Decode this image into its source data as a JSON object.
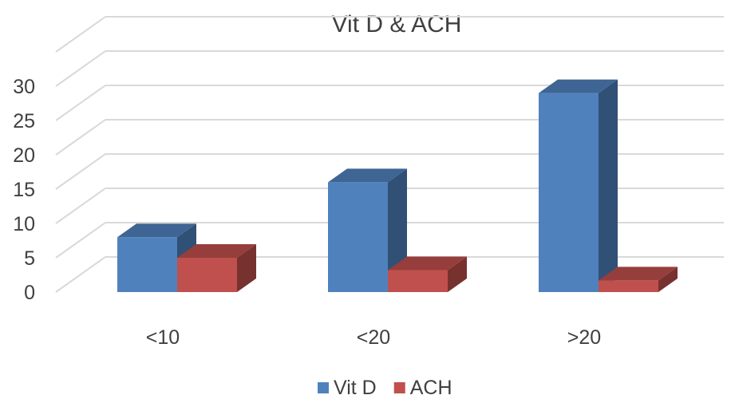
{
  "chart_data": {
    "type": "bar",
    "title": "Vit D & ACH",
    "categories": [
      "<10",
      "<20",
      ">20"
    ],
    "series": [
      {
        "name": "Vit D",
        "values": [
          8,
          16,
          29
        ],
        "color": "#4F81BD"
      },
      {
        "name": "ACH",
        "values": [
          5,
          3.2,
          1.7
        ],
        "color": "#C0504D"
      }
    ],
    "yticks": [
      "0",
      "5",
      "10",
      "15",
      "20",
      "25",
      "30"
    ],
    "ylim": [
      0,
      30
    ],
    "grid": true,
    "legend_position": "bottom",
    "style": "3d-clustered-column"
  }
}
